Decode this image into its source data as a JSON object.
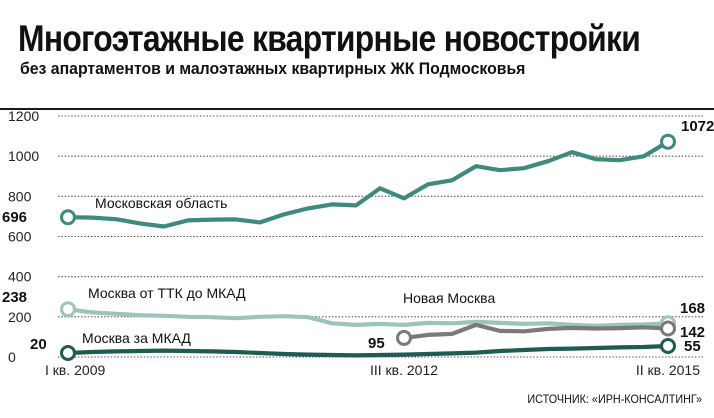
{
  "header": {
    "title": "Многоэтажные квартирные новостройки",
    "subtitle": "без апартаментов и малоэтажных квартирных ЖК Подмосковья"
  },
  "source": "ИСТОЧНИК: «ИРН-КОНСАЛТИНГ»",
  "colors": {
    "moscow_region": "#3f8a7d",
    "ttk_mkad": "#9cc4bc",
    "new_moscow": "#7a7a7a",
    "outside_mkad": "#1f5b50"
  },
  "chart_data": {
    "type": "line",
    "title": "Многоэтажные квартирные новостройки",
    "subtitle": "без апартаментов и малоэтажных квартирных ЖК Подмосковья",
    "xlabel": "",
    "ylabel": "",
    "ylim": [
      0,
      1200
    ],
    "yticks": [
      0,
      200,
      400,
      600,
      800,
      1000,
      1200
    ],
    "grid": true,
    "x_tick_labels": [
      {
        "index": 0,
        "label": "I кв. 2009"
      },
      {
        "index": 14,
        "label": "III кв. 2012"
      },
      {
        "index": 25,
        "label": "II кв. 2015"
      }
    ],
    "x": [
      "I кв. 2009",
      "II кв. 2009",
      "III кв. 2009",
      "IV кв. 2009",
      "I кв. 2010",
      "II кв. 2010",
      "III кв. 2010",
      "IV кв. 2010",
      "I кв. 2011",
      "II кв. 2011",
      "III кв. 2011",
      "IV кв. 2011",
      "I кв. 2012",
      "II кв. 2012",
      "III кв. 2012",
      "IV кв. 2012",
      "I кв. 2013",
      "II кв. 2013",
      "III кв. 2013",
      "IV кв. 2013",
      "I кв. 2014",
      "II кв. 2014",
      "III кв. 2014",
      "IV кв. 2014",
      "I кв. 2015",
      "II кв. 2015"
    ],
    "series": [
      {
        "name": "Московская область",
        "color_key": "moscow_region",
        "values": [
          696,
          694,
          686,
          665,
          650,
          680,
          684,
          685,
          670,
          710,
          740,
          760,
          755,
          840,
          790,
          860,
          880,
          950,
          930,
          940,
          975,
          1020,
          985,
          980,
          1000,
          1072
        ],
        "start_label": "696",
        "end_label": "1072"
      },
      {
        "name": "Москва от ТТК до МКАД",
        "color_key": "ttk_mkad",
        "values": [
          238,
          222,
          215,
          208,
          205,
          200,
          198,
          193,
          200,
          203,
          198,
          168,
          160,
          165,
          160,
          170,
          168,
          175,
          170,
          165,
          168,
          160,
          155,
          160,
          162,
          168
        ],
        "start_label": "238",
        "end_label": "168"
      },
      {
        "name": "Новая Москва",
        "color_key": "new_moscow",
        "start_index": 14,
        "values": [
          null,
          null,
          null,
          null,
          null,
          null,
          null,
          null,
          null,
          null,
          null,
          null,
          null,
          null,
          95,
          110,
          115,
          160,
          130,
          128,
          140,
          145,
          142,
          144,
          148,
          142
        ],
        "start_label": "95",
        "end_label": "142"
      },
      {
        "name": "Москва за МКАД",
        "color_key": "outside_mkad",
        "values": [
          20,
          25,
          28,
          30,
          32,
          30,
          28,
          25,
          20,
          15,
          12,
          10,
          8,
          10,
          12,
          15,
          18,
          22,
          30,
          35,
          40,
          42,
          45,
          48,
          50,
          55
        ],
        "start_label": "20",
        "end_label": "55"
      }
    ]
  }
}
